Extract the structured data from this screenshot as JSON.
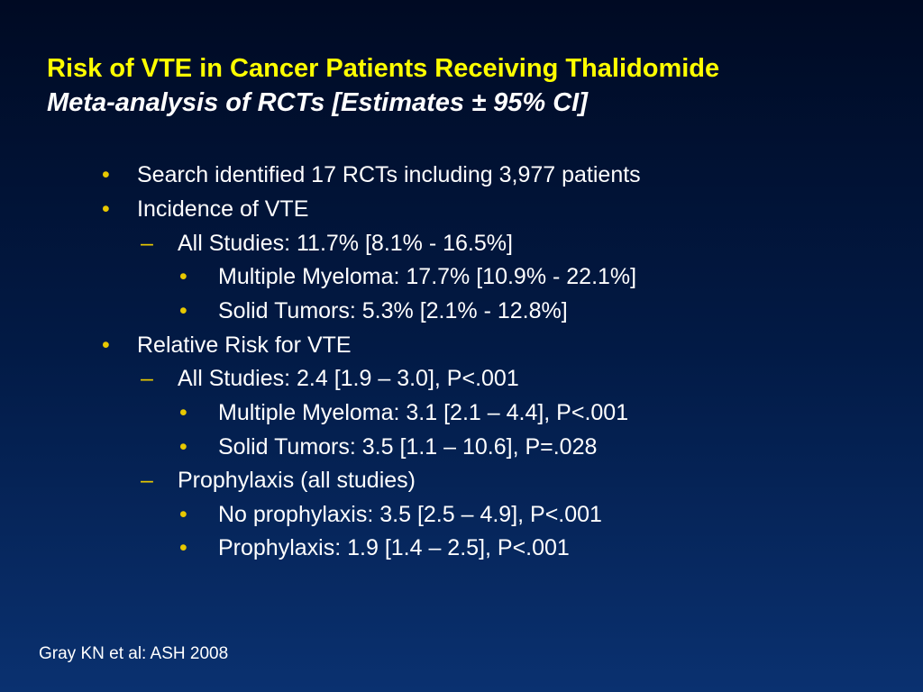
{
  "slide": {
    "title": "Risk of VTE in Cancer Patients Receiving Thalidomide",
    "subtitle": "Meta-analysis of RCTs [Estimates ± 95% CI]",
    "bullets": [
      {
        "level": 1,
        "marker": "•",
        "text": "Search identified 17 RCTs including 3,977 patients"
      },
      {
        "level": 1,
        "marker": "•",
        "text": "Incidence of VTE"
      },
      {
        "level": 2,
        "marker": "–",
        "text": "All Studies: 11.7% [8.1% - 16.5%]"
      },
      {
        "level": 3,
        "marker": "•",
        "text": "Multiple Myeloma:  17.7% [10.9% - 22.1%]"
      },
      {
        "level": 3,
        "marker": "•",
        "text": "Solid Tumors: 5.3% [2.1% - 12.8%]"
      },
      {
        "level": 1,
        "marker": "•",
        "text": "Relative Risk for VTE"
      },
      {
        "level": 2,
        "marker": "–",
        "text": "All Studies: 2.4 [1.9 – 3.0], P<.001"
      },
      {
        "level": 3,
        "marker": "•",
        "text": "Multiple Myeloma: 3.1 [2.1 – 4.4], P<.001"
      },
      {
        "level": 3,
        "marker": "•",
        "text": "Solid Tumors: 3.5 [1.1 – 10.6], P=.028"
      },
      {
        "level": 2,
        "marker": "–",
        "text": "Prophylaxis (all studies)"
      },
      {
        "level": 3,
        "marker": "•",
        "text": "No prophylaxis: 3.5 [2.5 – 4.9], P<.001"
      },
      {
        "level": 3,
        "marker": "•",
        "text": "Prophylaxis: 1.9 [1.4 – 2.5], P<.001"
      }
    ],
    "footnote": "Gray KN et al: ASH 2008"
  },
  "colors": {
    "title": "#ffff00",
    "text": "#ffffff",
    "bullet_marker": "#e8c800",
    "background_top": "#000a23",
    "background_bottom": "#0a3170"
  }
}
